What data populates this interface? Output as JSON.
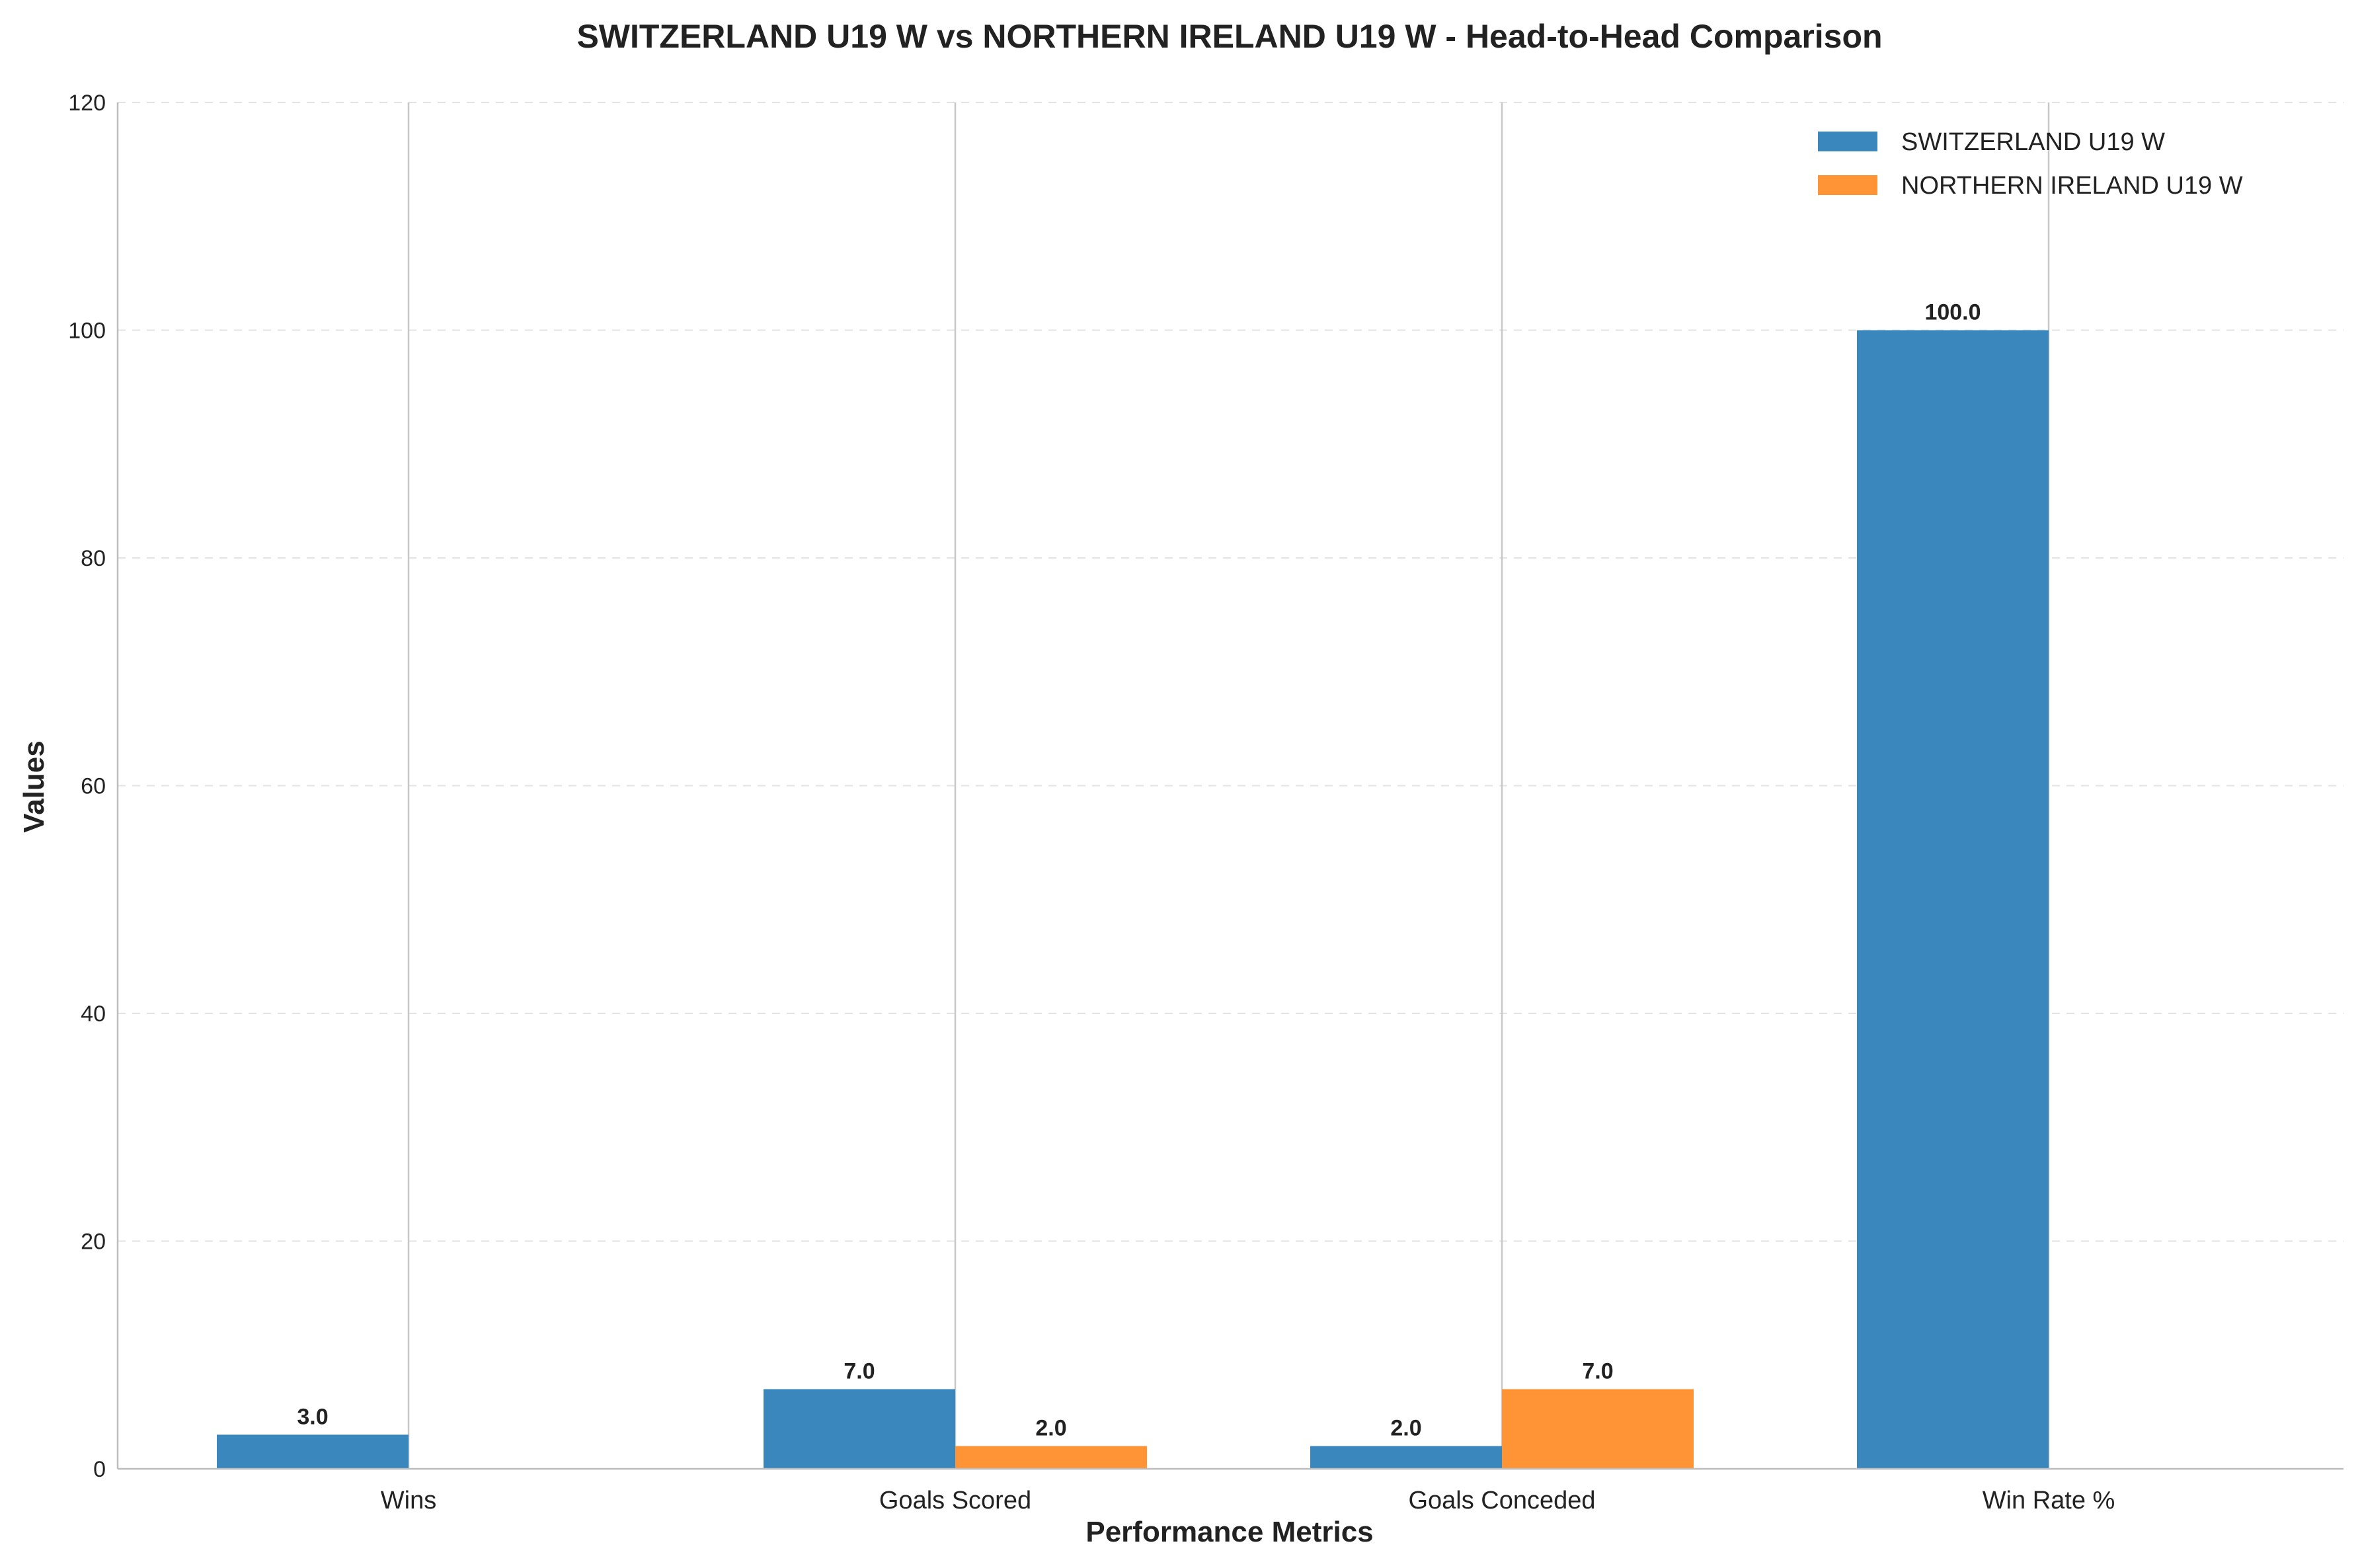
{
  "chart_data": {
    "type": "bar",
    "title": "SWITZERLAND U19 W vs NORTHERN IRELAND U19 W - Head-to-Head Comparison",
    "xlabel": "Performance Metrics",
    "ylabel": "Values",
    "categories": [
      "Wins",
      "Goals Scored",
      "Goals Conceded",
      "Win Rate %"
    ],
    "series": [
      {
        "name": "SWITZERLAND U19 W",
        "values": [
          3,
          7,
          2,
          100
        ],
        "labels": [
          "3.0",
          "7.0",
          "2.0",
          "100.0"
        ],
        "color": "#3a87be"
      },
      {
        "name": "NORTHERN IRELAND U19 W",
        "values": [
          0,
          2,
          7,
          0
        ],
        "labels": [
          "",
          "2.0",
          "7.0",
          ""
        ],
        "color": "#ff9436"
      }
    ],
    "ylim": [
      0,
      120
    ],
    "yticks": [
      0,
      20,
      40,
      60,
      80,
      100,
      120
    ],
    "grid": "y-dashed",
    "legend": "top-right"
  }
}
